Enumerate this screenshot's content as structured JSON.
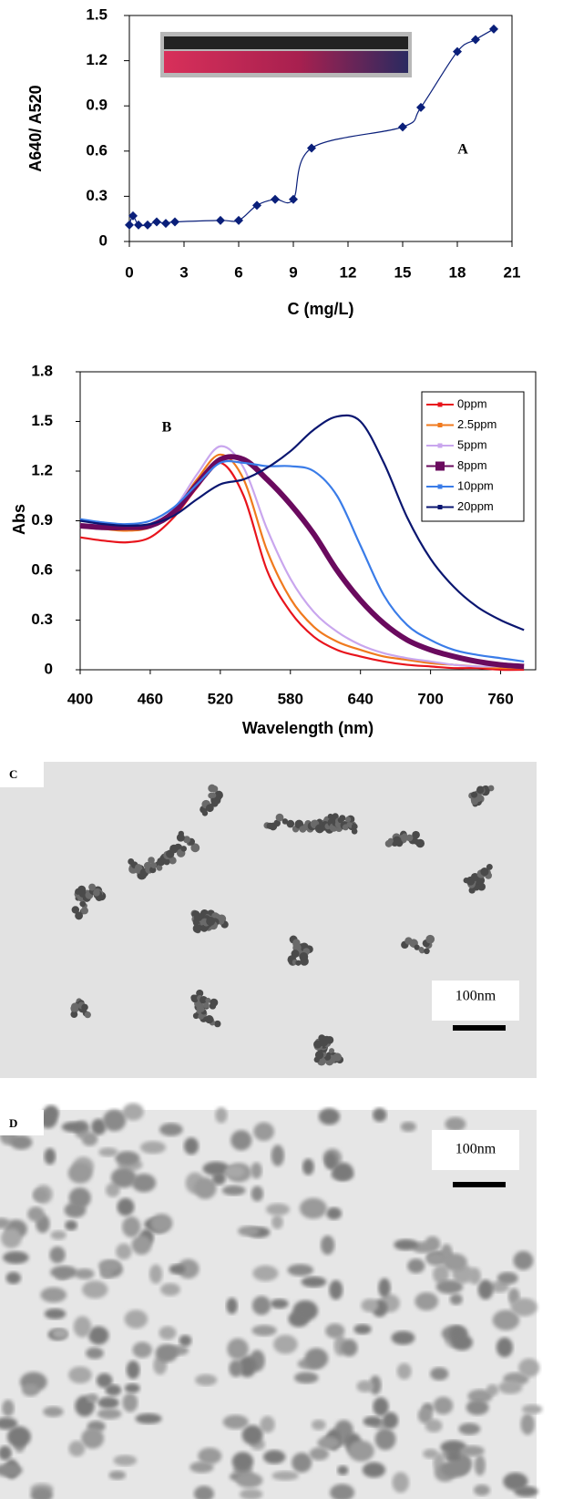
{
  "chart_data": [
    {
      "type": "line",
      "marker": "diamond",
      "color": "#0a1f7a",
      "x_label": "C (mg/L)",
      "y_label": "A640/ A520",
      "annotation": "A",
      "x": [
        0,
        0.2,
        0.5,
        1,
        1.5,
        2,
        2.5,
        5,
        6,
        7,
        8,
        9,
        10,
        15,
        16,
        18,
        19,
        20
      ],
      "values": [
        0.11,
        0.17,
        0.11,
        0.11,
        0.13,
        0.12,
        0.13,
        0.14,
        0.14,
        0.24,
        0.28,
        0.28,
        0.62,
        0.76,
        0.89,
        1.26,
        1.34,
        1.41
      ],
      "xlim": [
        0,
        21
      ],
      "xticks": [
        0,
        3,
        6,
        9,
        12,
        15,
        18,
        21
      ],
      "ylim": [
        0,
        1.5
      ],
      "yticks": [
        0,
        0.3,
        0.6,
        0.9,
        1.2,
        1.5
      ]
    },
    {
      "type": "line",
      "x_label": "Wavelength (nm)",
      "y_label": "Abs",
      "annotation": "B",
      "legend": "upper right",
      "x": [
        400,
        420,
        440,
        460,
        480,
        500,
        520,
        540,
        560,
        580,
        600,
        620,
        640,
        660,
        680,
        700,
        720,
        740,
        760,
        780
      ],
      "series": [
        {
          "name": "0ppm",
          "color": "#e8141c",
          "values": [
            0.8,
            0.78,
            0.77,
            0.8,
            0.92,
            1.1,
            1.25,
            1.05,
            0.6,
            0.35,
            0.2,
            0.12,
            0.08,
            0.05,
            0.03,
            0.02,
            0.01,
            0.01,
            0,
            0
          ]
        },
        {
          "name": "2.5ppm",
          "color": "#f07a1e",
          "values": [
            0.86,
            0.85,
            0.84,
            0.86,
            0.95,
            1.15,
            1.3,
            1.15,
            0.72,
            0.43,
            0.26,
            0.17,
            0.12,
            0.08,
            0.06,
            0.04,
            0.03,
            0.02,
            0.01,
            0.01
          ]
        },
        {
          "name": "5ppm",
          "color": "#c9a6ee",
          "values": [
            0.88,
            0.87,
            0.86,
            0.88,
            0.97,
            1.18,
            1.35,
            1.22,
            0.85,
            0.55,
            0.35,
            0.23,
            0.15,
            0.1,
            0.07,
            0.05,
            0.03,
            0.02,
            0.02,
            0.01
          ]
        },
        {
          "name": "8ppm",
          "color": "#6a0a5e",
          "values": [
            0.87,
            0.86,
            0.86,
            0.87,
            0.95,
            1.12,
            1.27,
            1.27,
            1.15,
            1.0,
            0.82,
            0.6,
            0.42,
            0.28,
            0.18,
            0.12,
            0.08,
            0.05,
            0.03,
            0.02
          ]
        },
        {
          "name": "10ppm",
          "color": "#3a7ce8",
          "values": [
            0.91,
            0.89,
            0.88,
            0.9,
            0.98,
            1.12,
            1.25,
            1.25,
            1.23,
            1.23,
            1.2,
            1.05,
            0.75,
            0.45,
            0.27,
            0.18,
            0.12,
            0.09,
            0.07,
            0.05
          ]
        },
        {
          "name": "20ppm",
          "color": "#0a1670",
          "values": [
            0.9,
            0.88,
            0.87,
            0.88,
            0.93,
            1.03,
            1.12,
            1.15,
            1.22,
            1.32,
            1.45,
            1.53,
            1.5,
            1.25,
            0.92,
            0.67,
            0.5,
            0.38,
            0.3,
            0.24
          ]
        }
      ],
      "xlim": [
        400,
        790
      ],
      "xticks": [
        400,
        460,
        520,
        580,
        640,
        700,
        760
      ],
      "ylim": [
        0,
        1.8
      ],
      "yticks": [
        0,
        0.3,
        0.6,
        0.9,
        1.2,
        1.5,
        1.8
      ]
    }
  ],
  "panels": [
    {
      "label": "C",
      "scale_bar": "100nm"
    },
    {
      "label": "D",
      "scale_bar": "100nm"
    }
  ]
}
